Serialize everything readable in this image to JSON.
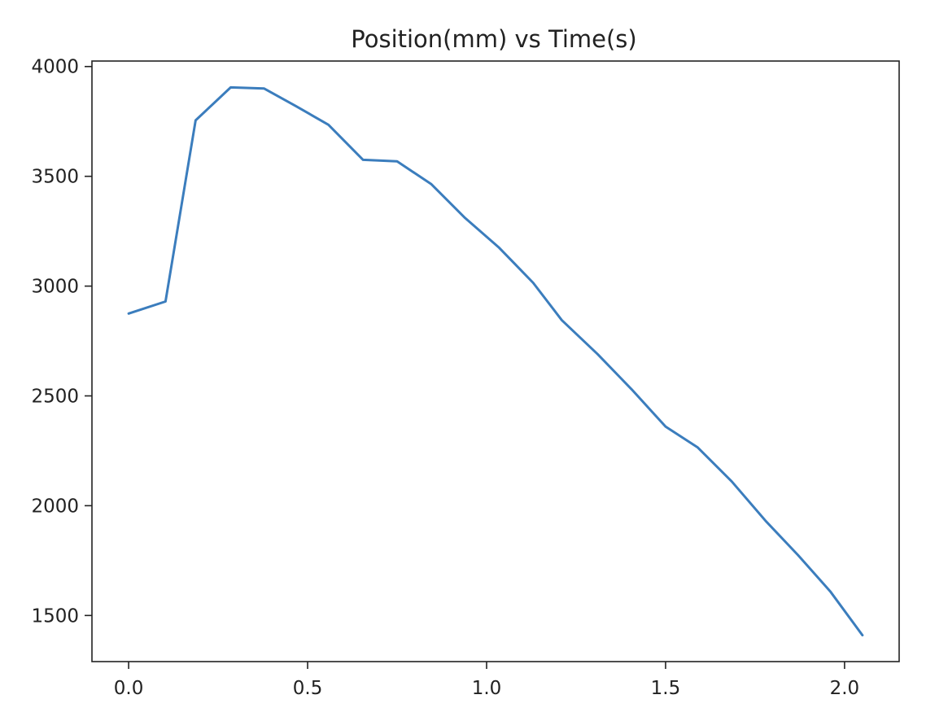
{
  "chart_data": {
    "type": "line",
    "title": "Position(mm) vs Time(s)",
    "xlabel": "",
    "ylabel": "",
    "xlim": [
      -0.1025,
      2.1525
    ],
    "ylim": [
      1290,
      4025
    ],
    "xticks": [
      0.0,
      0.5,
      1.0,
      1.5,
      2.0
    ],
    "xtick_labels": [
      "0.0",
      "0.5",
      "1.0",
      "1.5",
      "2.0"
    ],
    "yticks": [
      1500,
      2000,
      2500,
      3000,
      3500,
      4000
    ],
    "ytick_labels": [
      "1500",
      "2000",
      "2500",
      "3000",
      "3500",
      "4000"
    ],
    "grid": false,
    "series": [
      {
        "color": "#3b7dbd",
        "x": [
          0.0,
          0.103,
          0.187,
          0.285,
          0.378,
          0.467,
          0.558,
          0.655,
          0.75,
          0.845,
          0.94,
          1.035,
          1.13,
          1.21,
          1.31,
          1.405,
          1.5,
          1.59,
          1.685,
          1.78,
          1.87,
          1.96,
          2.05
        ],
        "y": [
          2875,
          2930,
          3755,
          3905,
          3900,
          3820,
          3735,
          3575,
          3568,
          3465,
          3310,
          3175,
          3015,
          2845,
          2690,
          2530,
          2360,
          2265,
          2110,
          1930,
          1775,
          1610,
          1410
        ]
      }
    ]
  }
}
